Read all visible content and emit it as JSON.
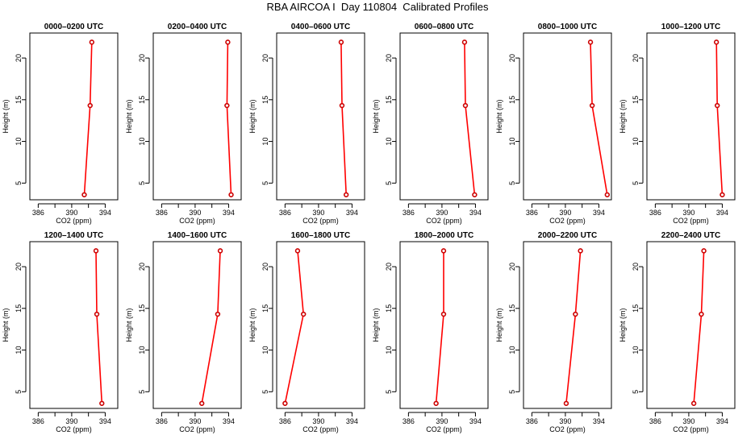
{
  "title": "RBA AIRCOA I  Day 110804  Calibrated Profiles",
  "chart_data": {
    "type": "line",
    "xlabel": "CO2 (ppm)",
    "ylabel": "Height (m)",
    "xlim": [
      385,
      395.5
    ],
    "ylim": [
      3,
      23
    ],
    "xticks": [
      "386",
      "390",
      "394"
    ],
    "xtick_values": [
      386,
      390,
      394
    ],
    "xminor_ticks": [
      388,
      392
    ],
    "yticks": [
      "5",
      "10",
      "15",
      "20"
    ],
    "ytick_values": [
      5,
      10,
      15,
      20
    ],
    "heights": [
      3.6,
      14.3,
      21.9
    ],
    "line_color": "#ff0000",
    "marker_color": "#cc0000",
    "panels": [
      {
        "title": "0000–0200 UTC",
        "co2": [
          391.5,
          392.2,
          392.4
        ]
      },
      {
        "title": "0200–0400 UTC",
        "co2": [
          394.3,
          393.8,
          393.9
        ]
      },
      {
        "title": "0400–0600 UTC",
        "co2": [
          393.3,
          392.8,
          392.7
        ]
      },
      {
        "title": "0600–0800 UTC",
        "co2": [
          393.9,
          392.8,
          392.7
        ]
      },
      {
        "title": "0800–1000 UTC",
        "co2": [
          395.0,
          393.2,
          393.0
        ]
      },
      {
        "title": "1000–1200 UTC",
        "co2": [
          394.0,
          393.4,
          393.3
        ]
      },
      {
        "title": "1200–1400 UTC",
        "co2": [
          393.6,
          393.0,
          392.9
        ]
      },
      {
        "title": "1400–1600 UTC",
        "co2": [
          390.8,
          392.7,
          393.0
        ]
      },
      {
        "title": "1600–1800 UTC",
        "co2": [
          386.0,
          388.2,
          387.5
        ]
      },
      {
        "title": "1800–2000 UTC",
        "co2": [
          389.3,
          390.2,
          390.2
        ]
      },
      {
        "title": "2000–2200 UTC",
        "co2": [
          390.1,
          391.2,
          391.8
        ]
      },
      {
        "title": "2200–2400 UTC",
        "co2": [
          390.6,
          391.5,
          391.8
        ]
      }
    ]
  }
}
